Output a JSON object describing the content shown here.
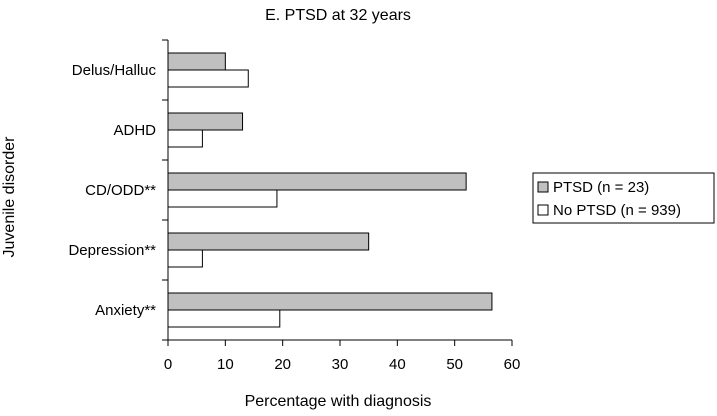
{
  "chart_data": {
    "type": "bar",
    "orientation": "horizontal",
    "title": "E. PTSD at 32 years",
    "xlabel": "Percentage with diagnosis",
    "ylabel": "Juvenile disorder",
    "categories": [
      "Delus/Halluc",
      "ADHD",
      "CD/ODD**",
      "Depression**",
      "Anxiety**"
    ],
    "series": [
      {
        "name": "PTSD (n = 23)",
        "values": [
          10,
          13,
          52,
          35,
          56.5
        ],
        "color": "#c0c0c0"
      },
      {
        "name": "No PTSD (n = 939)",
        "values": [
          14,
          6,
          19,
          6,
          19.5
        ],
        "color": "#ffffff"
      }
    ],
    "xlim": [
      0,
      60
    ],
    "xticks": [
      0,
      10,
      20,
      30,
      40,
      50,
      60
    ],
    "grid": false,
    "legend_position": "right"
  }
}
